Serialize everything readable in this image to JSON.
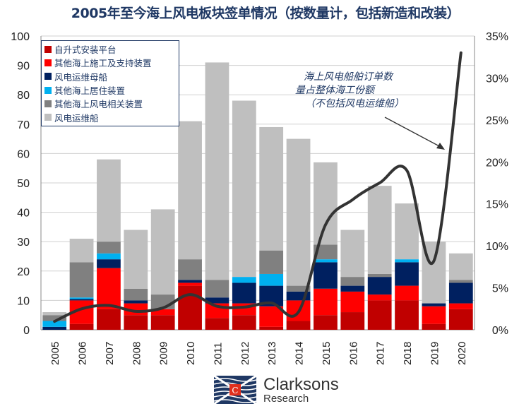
{
  "chart_data": {
    "type": "bar",
    "stacked": true,
    "title": "2005年至今海上风电板块签单情况（按数量计，包括新造和改装）",
    "categories": [
      "2005",
      "2006",
      "2007",
      "2008",
      "2009",
      "2010",
      "2011",
      "2012",
      "2013",
      "2014",
      "2015",
      "2016",
      "2017",
      "2018",
      "2019",
      "2020"
    ],
    "ylim": [
      0,
      100
    ],
    "yticks": [
      "0",
      "10",
      "20",
      "30",
      "40",
      "50",
      "60",
      "70",
      "80",
      "90",
      "100"
    ],
    "y2lim": [
      0,
      35
    ],
    "y2ticks": [
      "0%",
      "5%",
      "10%",
      "15%",
      "20%",
      "25%",
      "30%",
      "35%"
    ],
    "grid": true,
    "legend_position": "top-left",
    "series": [
      {
        "name": "自升式安装平台",
        "color": "#c00000",
        "values": [
          0,
          2,
          7,
          5,
          5,
          15,
          4,
          5,
          1,
          3,
          5,
          6,
          10,
          10,
          2,
          7
        ]
      },
      {
        "name": "其他海上施工及支持装置",
        "color": "#ff0000",
        "values": [
          0,
          8,
          14,
          4,
          2,
          1,
          5,
          4,
          7,
          7,
          9,
          7,
          2,
          5,
          6,
          2
        ]
      },
      {
        "name": "风电运维母船",
        "color": "#002060",
        "values": [
          1,
          0.5,
          3,
          1,
          0,
          1,
          2,
          7,
          7,
          3,
          9,
          2,
          6,
          8,
          1,
          7
        ]
      },
      {
        "name": "其他海上居住装置",
        "color": "#00b0f0",
        "values": [
          2,
          0.5,
          2,
          0,
          0,
          0,
          0,
          2,
          4,
          0,
          1,
          0,
          0,
          1,
          0,
          0
        ]
      },
      {
        "name": "其他海上风电相关装置",
        "color": "#808080",
        "values": [
          2,
          12,
          4,
          4,
          5,
          7,
          6,
          0,
          8,
          2,
          5,
          3,
          1,
          0,
          0,
          1
        ]
      },
      {
        "name": "风电运维船",
        "color": "#bfbfbf",
        "values": [
          1,
          8,
          28,
          20,
          29,
          47,
          74,
          60,
          42,
          50,
          28,
          16,
          30,
          19,
          21,
          9
        ]
      }
    ],
    "line": {
      "name": "海上风电船舶订单数量占整体海工份额（不包括风电运维船）",
      "axis": "right",
      "color": "#333333",
      "values": [
        1.0,
        2.5,
        2.9,
        2.2,
        2.6,
        4.2,
        2.8,
        2.7,
        3.2,
        2.1,
        12.5,
        15.5,
        17.5,
        19.0,
        8.2,
        33.0
      ]
    },
    "annotation": [
      "海上风电船舶订单数",
      "量占整体海工份额",
      "（不包括风电运维船）"
    ]
  },
  "logo": {
    "name": "Clarksons",
    "sub": "Research"
  }
}
